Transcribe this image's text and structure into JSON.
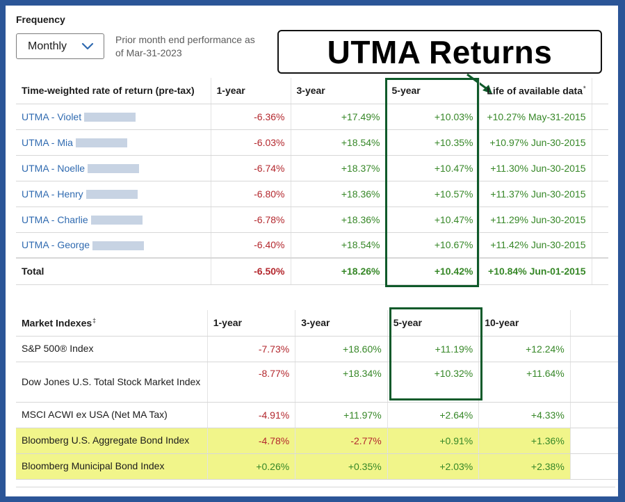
{
  "frequency": {
    "label": "Frequency",
    "selected": "Monthly",
    "note": "Prior month end performance as of Mar-31-2023"
  },
  "callout": {
    "text": "UTMA Returns"
  },
  "accounts_table": {
    "headers": [
      "Time-weighted rate of return (pre-tax)",
      "1-year",
      "3-year",
      "5-year",
      "Life of available data"
    ],
    "life_marker": "*",
    "rows": [
      {
        "name": "UTMA - Violet",
        "y1": "-6.36%",
        "y3": "+17.49%",
        "y5": "+10.03%",
        "life": "+10.27% May-31-2015"
      },
      {
        "name": "UTMA - Mia",
        "y1": "-6.03%",
        "y3": "+18.54%",
        "y5": "+10.35%",
        "life": "+10.97% Jun-30-2015"
      },
      {
        "name": "UTMA - Noelle",
        "y1": "-6.74%",
        "y3": "+18.37%",
        "y5": "+10.47%",
        "life": "+11.30% Jun-30-2015"
      },
      {
        "name": "UTMA - Henry",
        "y1": "-6.80%",
        "y3": "+18.36%",
        "y5": "+10.57%",
        "life": "+11.37% Jun-30-2015"
      },
      {
        "name": "UTMA - Charlie",
        "y1": "-6.78%",
        "y3": "+18.36%",
        "y5": "+10.47%",
        "life": "+11.29% Jun-30-2015"
      },
      {
        "name": "UTMA - George",
        "y1": "-6.40%",
        "y3": "+18.54%",
        "y5": "+10.67%",
        "life": "+11.42% Jun-30-2015"
      }
    ],
    "total": {
      "name": "Total",
      "y1": "-6.50%",
      "y3": "+18.26%",
      "y5": "+10.42%",
      "life": "+10.84% Jun-01-2015"
    }
  },
  "index_table": {
    "headers": [
      "Market Indexes",
      "1-year",
      "3-year",
      "5-year",
      "10-year"
    ],
    "header_marker": "‡",
    "rows": [
      {
        "name": "S&P 500® Index",
        "y1": "-7.73%",
        "y3": "+18.60%",
        "y5": "+11.19%",
        "y10": "+12.24%"
      },
      {
        "name": "Dow Jones U.S. Total Stock Market Index",
        "y1": "-8.77%",
        "y3": "+18.34%",
        "y5": "+10.32%",
        "y10": "+11.64%"
      },
      {
        "name": "MSCI ACWI ex USA (Net MA Tax)",
        "y1": "-4.91%",
        "y3": "+11.97%",
        "y5": "+2.64%",
        "y10": "+4.33%"
      },
      {
        "name": "Bloomberg U.S. Aggregate Bond Index",
        "y1": "-4.78%",
        "y3": "-2.77%",
        "y5": "+0.91%",
        "y10": "+1.36%"
      },
      {
        "name": "Bloomberg Municipal Bond Index",
        "y1": "+0.26%",
        "y3": "+0.35%",
        "y5": "+2.03%",
        "y10": "+2.38%"
      }
    ]
  },
  "colors": {
    "negative": "#b3272d",
    "positive": "#368727",
    "link": "#2f6ab0",
    "highlight": "#f1f58a",
    "box": "#0f5a2a"
  }
}
